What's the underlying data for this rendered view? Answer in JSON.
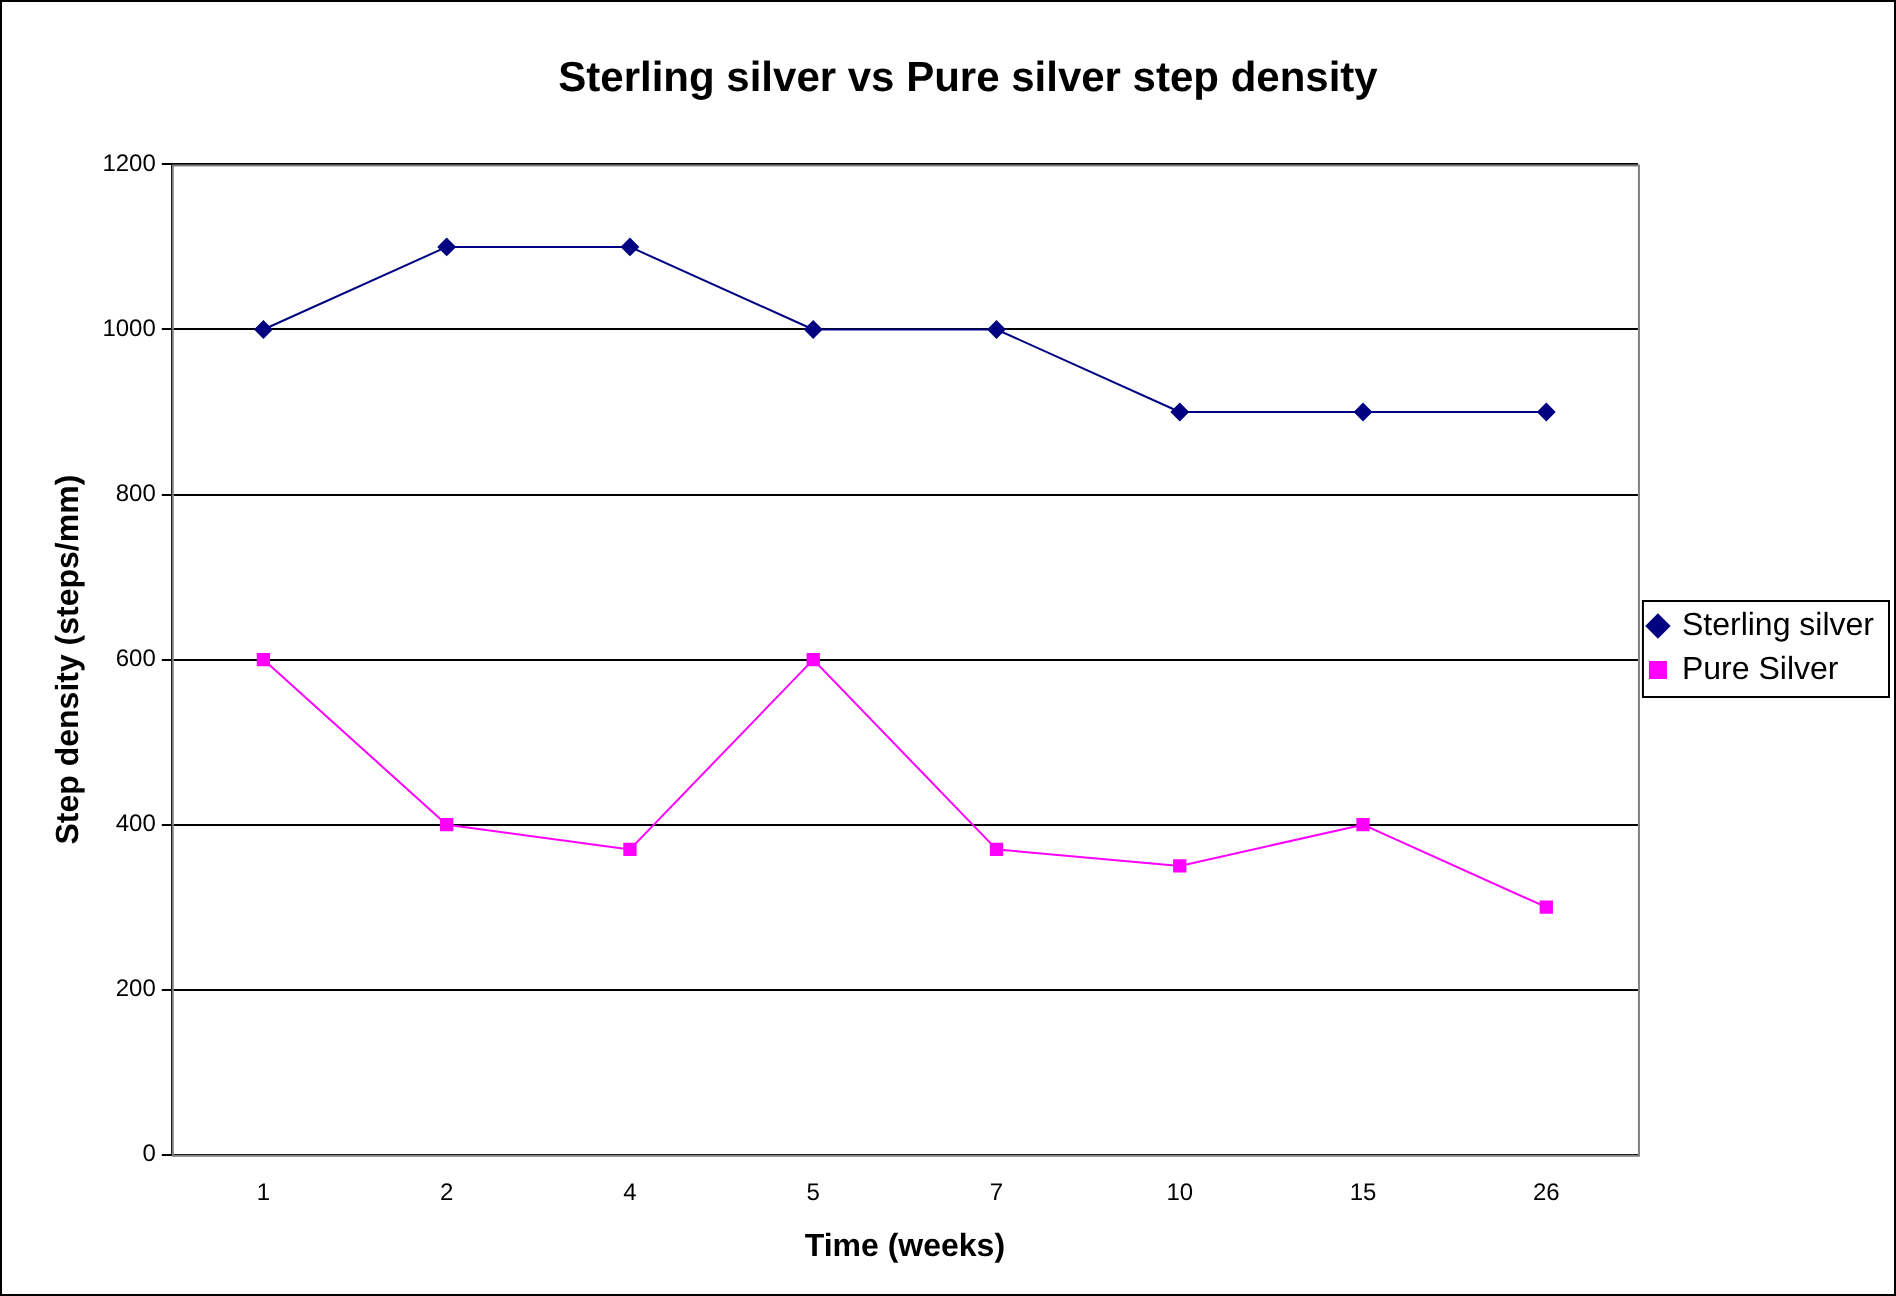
{
  "chart_data": {
    "type": "line",
    "title": "Sterling silver vs Pure silver step density",
    "xlabel": "Time (weeks)",
    "ylabel": "Step density (steps/mm)",
    "categories": [
      "1",
      "2",
      "4",
      "5",
      "7",
      "10",
      "15",
      "26"
    ],
    "series": [
      {
        "name": "Sterling silver",
        "color": "#000080",
        "marker": "diamond",
        "values": [
          1000,
          1100,
          1100,
          1000,
          1000,
          900,
          900,
          900
        ]
      },
      {
        "name": "Pure Silver",
        "color": "#ff00ff",
        "marker": "square",
        "values": [
          600,
          400,
          370,
          600,
          370,
          350,
          400,
          300
        ]
      }
    ],
    "ylim": [
      0,
      1200
    ],
    "yticks": [
      0,
      200,
      400,
      600,
      800,
      1000,
      1200
    ],
    "grid": "y",
    "legend": "right",
    "line_style": "solid"
  }
}
